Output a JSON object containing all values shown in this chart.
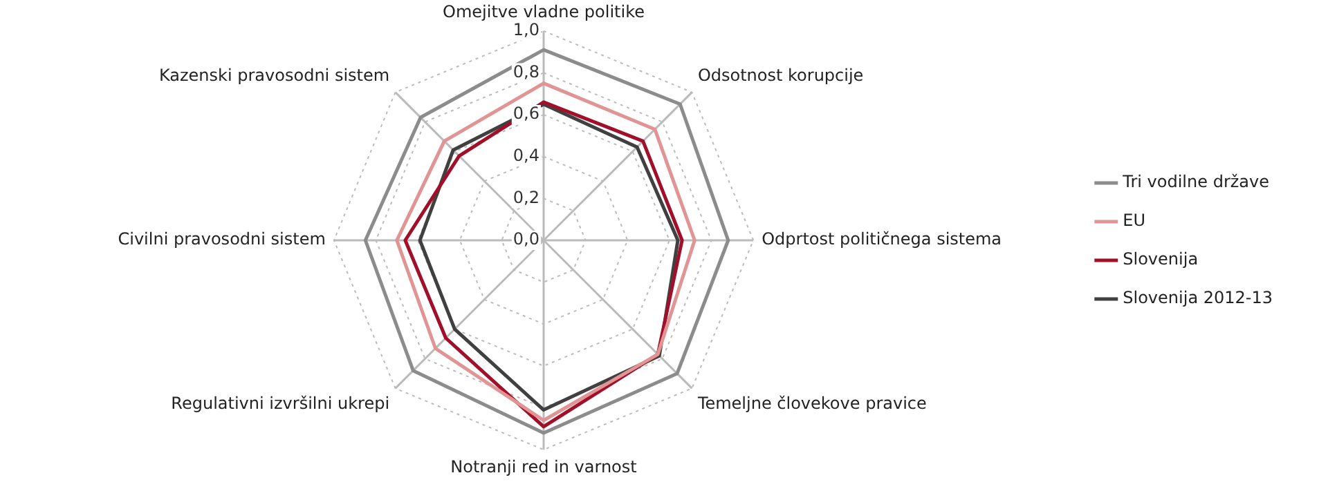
{
  "chart_data": {
    "type": "radar",
    "categories": [
      "Omejitve vladne politike",
      "Odsotnost korupcije",
      "Odprtost političnega sistema",
      "Temeljne človekove pravice",
      "Notranji red in varnost",
      "Regulativni izvršilni ukrepi",
      "Civilni pravosodni sistem",
      "Kazenski pravosodni sistem"
    ],
    "series": [
      {
        "name": "Tri vodilne države",
        "color": "#8c8c8c",
        "values": [
          0.91,
          0.92,
          0.88,
          0.9,
          0.92,
          0.88,
          0.85,
          0.83
        ]
      },
      {
        "name": "EU",
        "color": "#e09494",
        "values": [
          0.75,
          0.75,
          0.72,
          0.77,
          0.86,
          0.73,
          0.7,
          0.67
        ]
      },
      {
        "name": "Slovenija",
        "color": "#a0102a",
        "values": [
          0.66,
          0.67,
          0.66,
          0.77,
          0.89,
          0.66,
          0.66,
          0.57
        ]
      },
      {
        "name": "Slovenija 2012-13",
        "color": "#404040",
        "values": [
          0.65,
          0.63,
          0.64,
          0.78,
          0.81,
          0.6,
          0.59,
          0.61
        ]
      }
    ],
    "ylim": [
      0,
      1
    ],
    "yticks": [
      {
        "value": 0,
        "label": "0,0"
      },
      {
        "value": 0.2,
        "label": "0,2"
      },
      {
        "value": 0.4,
        "label": "0,4"
      },
      {
        "value": 0.6,
        "label": "0,6"
      },
      {
        "value": 0.8,
        "label": "0,8"
      },
      {
        "value": 1,
        "label": "1,0"
      }
    ],
    "grid": true,
    "legend": "right",
    "marker": "none"
  }
}
